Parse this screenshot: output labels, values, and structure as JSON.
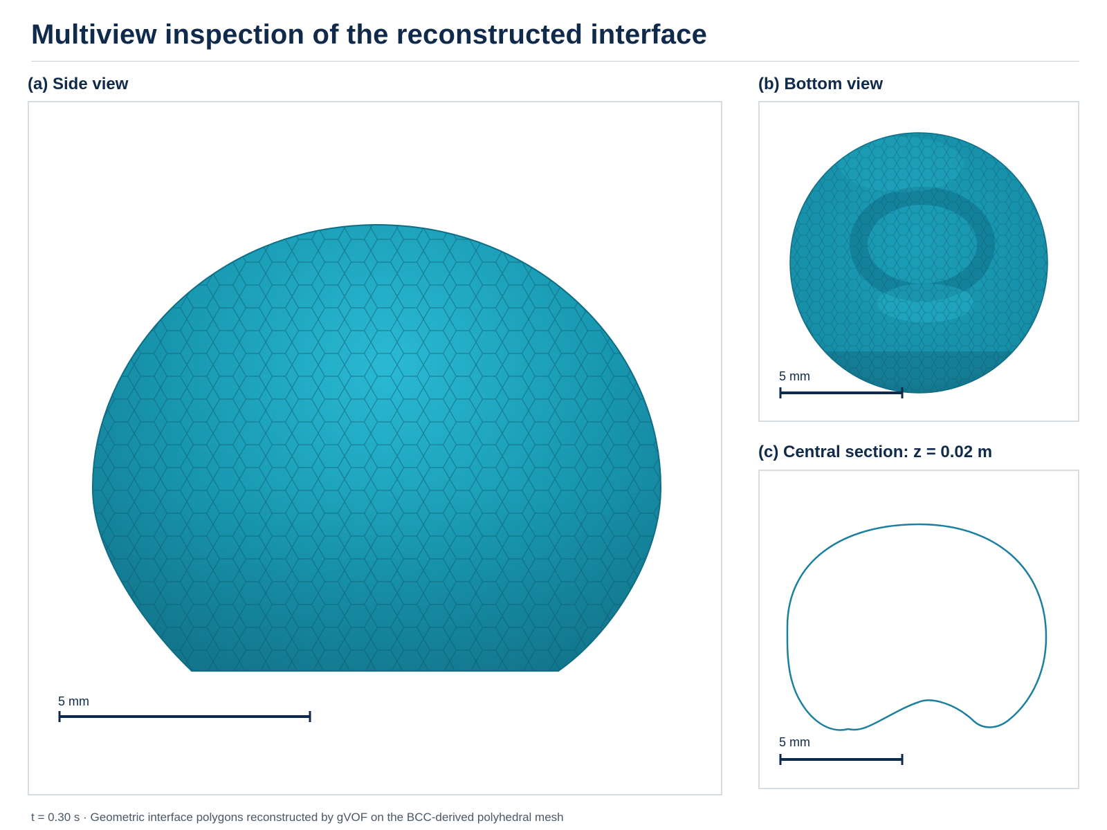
{
  "title": "Multiview inspection of the reconstructed interface",
  "panels": {
    "side": {
      "title": "(a) Side view",
      "scale_label": "5 mm"
    },
    "bottom": {
      "title": "(b) Bottom view",
      "scale_label": "5 mm"
    },
    "section": {
      "title": "(c) Central section: z = 0.02 m",
      "scale_label": "5 mm"
    }
  },
  "footer": "t = 0.30 s · Geometric interface polygons reconstructed by gVOF on the BCC-derived polyhedral mesh",
  "colors": {
    "surface": "#1a8fa8",
    "surface_light": "#27b5cf",
    "surface_dark": "#12687e",
    "outline": "#1d7fa0",
    "scale_bar": "#0f2a4a"
  }
}
